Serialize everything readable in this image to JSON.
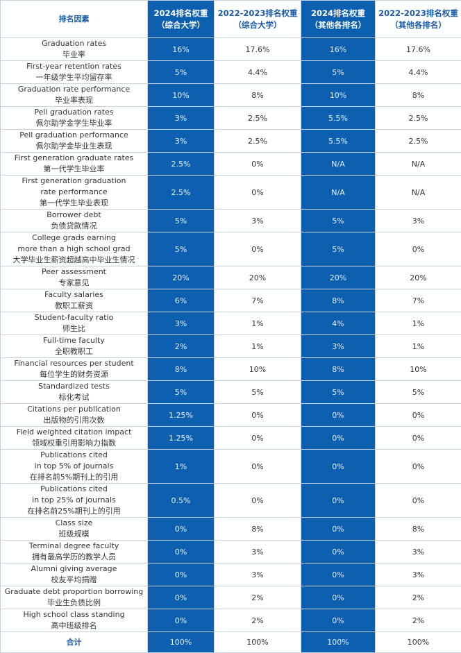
{
  "headers": {
    "factor": "排名因素",
    "col1_line1": "2024排名权重",
    "col1_line2": "（综合大学）",
    "col2_line1": "2022-2023排名权重",
    "col2_line2": "（综合大学）",
    "col3_line1": "2024排名权重",
    "col3_line2": "（其他各排名）",
    "col4_line1": "2022-2023排名权重",
    "col4_line2": "（其他各排名）"
  },
  "rows": [
    {
      "lines": [
        "Graduation rates",
        "毕业率"
      ],
      "v": [
        "16%",
        "17.6%",
        "16%",
        "17.6%"
      ]
    },
    {
      "lines": [
        "First-year retention rates",
        "一年级学生平均留存率"
      ],
      "v": [
        "5%",
        "4.4%",
        "5%",
        "4.4%"
      ]
    },
    {
      "lines": [
        "Graduation rate performance",
        "毕业率表现"
      ],
      "v": [
        "10%",
        "8%",
        "10%",
        "8%"
      ]
    },
    {
      "lines": [
        "Pell graduation rates",
        "佩尔助学金学生毕业率"
      ],
      "v": [
        "3%",
        "2.5%",
        "5.5%",
        "2.5%"
      ]
    },
    {
      "lines": [
        "Pell graduation performance",
        "佩尔助学金毕业生表现"
      ],
      "v": [
        "3%",
        "2.5%",
        "5.5%",
        "2.5%"
      ]
    },
    {
      "lines": [
        "First generation graduate rates",
        "第一代学生毕业率"
      ],
      "v": [
        "2.5%",
        "0%",
        "N/A",
        "N/A"
      ]
    },
    {
      "lines": [
        "First generation graduation",
        "rate performance",
        "第一代学生毕业表现"
      ],
      "v": [
        "2.5%",
        "0%",
        "N/A",
        "N/A"
      ]
    },
    {
      "lines": [
        "Borrower debt",
        "负债贷款情况"
      ],
      "v": [
        "5%",
        "3%",
        "5%",
        "3%"
      ]
    },
    {
      "lines": [
        "College grads earning",
        "more than a high school grad",
        "大学毕业生薪资超越高中毕业生情况"
      ],
      "v": [
        "5%",
        "0%",
        "5%",
        "0%"
      ]
    },
    {
      "lines": [
        "Peer assessment",
        "专家意见"
      ],
      "v": [
        "20%",
        "20%",
        "20%",
        "20%"
      ]
    },
    {
      "lines": [
        "Faculty salaries",
        "教职工薪资"
      ],
      "v": [
        "6%",
        "7%",
        "8%",
        "7%"
      ]
    },
    {
      "lines": [
        "Student-faculty ratio",
        "师生比"
      ],
      "v": [
        "3%",
        "1%",
        "4%",
        "1%"
      ]
    },
    {
      "lines": [
        "Full-time faculty",
        "全职教职工"
      ],
      "v": [
        "2%",
        "1%",
        "3%",
        "1%"
      ]
    },
    {
      "lines": [
        "Financial resources per student",
        "每位学生的财务资源"
      ],
      "v": [
        "8%",
        "10%",
        "8%",
        "10%"
      ]
    },
    {
      "lines": [
        "Standardized tests",
        "标化考试"
      ],
      "v": [
        "5%",
        "5%",
        "5%",
        "5%"
      ]
    },
    {
      "lines": [
        "Citations per publication",
        "出版物的引用次数"
      ],
      "v": [
        "1.25%",
        "0%",
        "0%",
        "0%"
      ]
    },
    {
      "lines": [
        "Field weighted citation impact",
        "领域权重引用影响力指数"
      ],
      "v": [
        "1.25%",
        "0%",
        "0%",
        "0%"
      ]
    },
    {
      "lines": [
        "Publications cited",
        "in top 5% of journals",
        "在排名前5%期刊上的引用"
      ],
      "v": [
        "1%",
        "0%",
        "0%",
        "0%"
      ]
    },
    {
      "lines": [
        "Publications cited",
        "in top 25% of journals",
        "在排名前25%期刊上的引用"
      ],
      "v": [
        "0.5%",
        "0%",
        "0%",
        "0%"
      ]
    },
    {
      "lines": [
        "Class size",
        "班级规模"
      ],
      "v": [
        "0%",
        "8%",
        "0%",
        "8%"
      ]
    },
    {
      "lines": [
        "Terminal degree faculty",
        "拥有最高学历的教学人员"
      ],
      "v": [
        "0%",
        "3%",
        "0%",
        "3%"
      ]
    },
    {
      "lines": [
        "Alumni giving average",
        "校友平均捐赠"
      ],
      "v": [
        "0%",
        "3%",
        "0%",
        "3%"
      ]
    },
    {
      "lines": [
        "Graduate debt proportion borrowing",
        "毕业生负债比例"
      ],
      "v": [
        "0%",
        "2%",
        "0%",
        "2%"
      ]
    },
    {
      "lines": [
        "High school class standing",
        "高中班级排名"
      ],
      "v": [
        "0%",
        "2%",
        "0%",
        "2%"
      ]
    }
  ],
  "total": {
    "label": "合计",
    "v": [
      "100%",
      "100%",
      "100%",
      "100%"
    ]
  },
  "colors": {
    "blue": "#0d5fb0",
    "header_text": "#1a5aa6"
  }
}
